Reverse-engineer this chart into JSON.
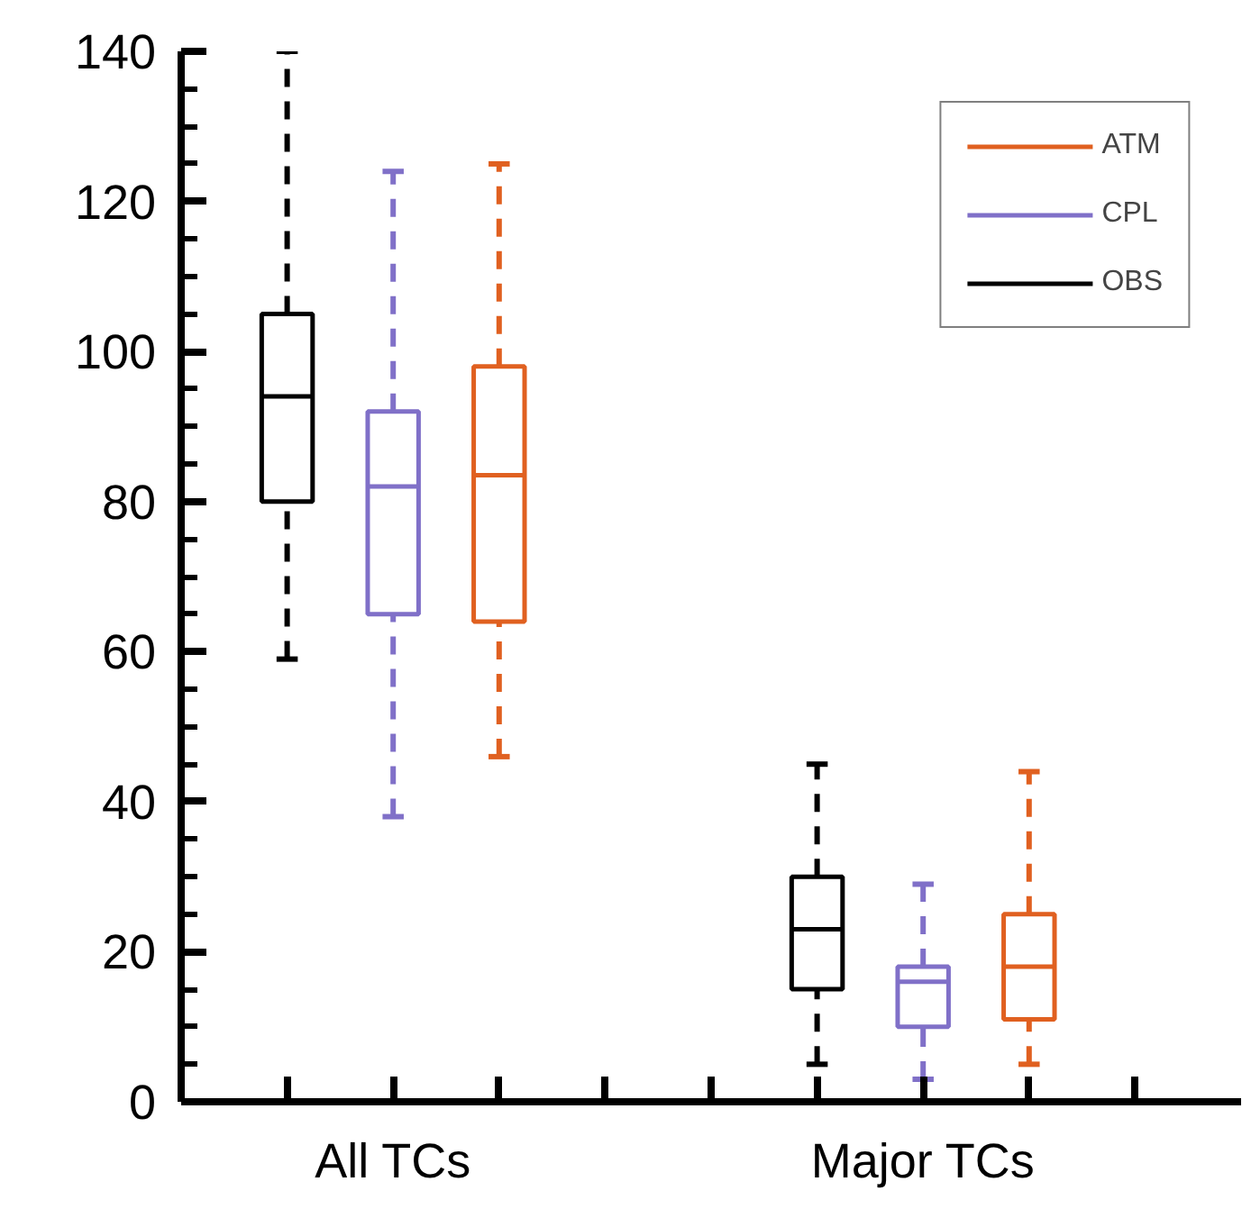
{
  "chart_data": {
    "type": "box",
    "categories": [
      "All TCs",
      "Major TCs"
    ],
    "series": [
      {
        "name": "OBS",
        "color": "#000000",
        "boxes": [
          {
            "low": 59,
            "q1": 80,
            "median": 94,
            "q3": 105,
            "high": 140
          },
          {
            "low": 5,
            "q1": 15,
            "median": 23,
            "q3": 30,
            "high": 45
          }
        ]
      },
      {
        "name": "CPL",
        "color": "#8070c8",
        "boxes": [
          {
            "low": 38,
            "q1": 65,
            "median": 82,
            "q3": 92,
            "high": 124
          },
          {
            "low": 3,
            "q1": 10,
            "median": 16,
            "q3": 18,
            "high": 29
          }
        ]
      },
      {
        "name": "ATM",
        "color": "#e06020",
        "boxes": [
          {
            "low": 46,
            "q1": 64,
            "median": 83.5,
            "q3": 98,
            "high": 125
          },
          {
            "low": 5,
            "q1": 11,
            "median": 18,
            "q3": 25,
            "high": 44
          }
        ]
      }
    ],
    "ylim": [
      0,
      140
    ],
    "yticks": [
      0,
      20,
      40,
      60,
      80,
      100,
      120,
      140
    ],
    "line_style": "dashed",
    "legend": "top right",
    "grid": false
  }
}
